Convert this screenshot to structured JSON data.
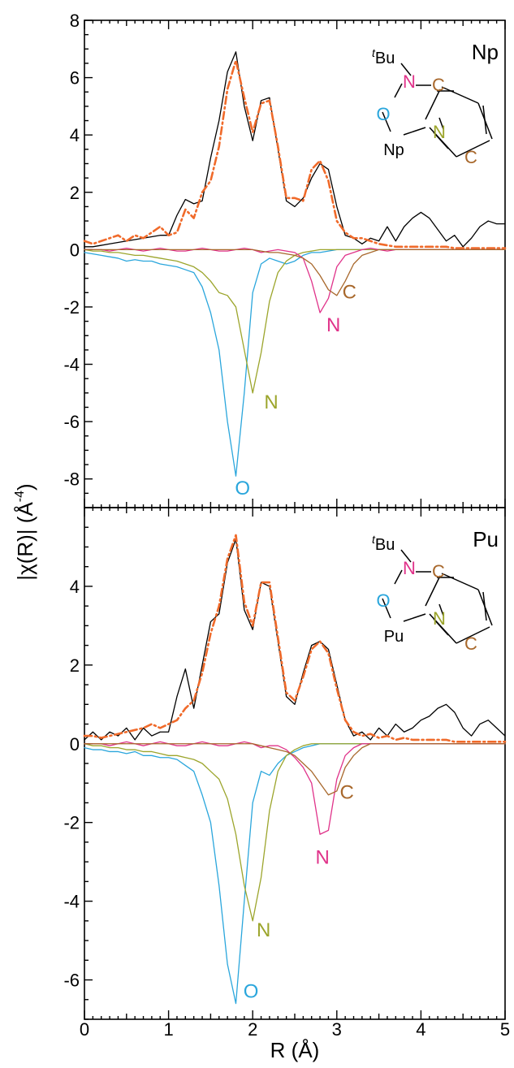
{
  "chart_data": [
    {
      "type": "line",
      "panel_label": "Np",
      "xlim": [
        0,
        5
      ],
      "ylim": [
        -9,
        8
      ],
      "y_ticks": [
        -8,
        -6,
        -4,
        -2,
        0,
        2,
        4,
        6,
        8
      ],
      "x": [
        0,
        0.1,
        0.2,
        0.3,
        0.4,
        0.5,
        0.6,
        0.7,
        0.8,
        0.9,
        1.0,
        1.1,
        1.2,
        1.3,
        1.4,
        1.5,
        1.6,
        1.7,
        1.8,
        1.9,
        2.0,
        2.1,
        2.2,
        2.3,
        2.4,
        2.5,
        2.6,
        2.7,
        2.8,
        2.9,
        3.0,
        3.1,
        3.2,
        3.3,
        3.4,
        3.5,
        3.6,
        3.7,
        3.8,
        3.9,
        4.0,
        4.1,
        4.2,
        4.3,
        4.4,
        4.5,
        4.6,
        4.7,
        4.8,
        4.9,
        5.0
      ],
      "series": [
        {
          "name": "",
          "color": "#000000",
          "dash": "",
          "width": 1.3,
          "values": [
            0.1,
            0.1,
            0.15,
            0.2,
            0.25,
            0.3,
            0.35,
            0.4,
            0.45,
            0.5,
            0.5,
            1.2,
            1.75,
            1.6,
            1.7,
            3.2,
            4.5,
            6.2,
            6.9,
            5.0,
            3.8,
            5.2,
            5.3,
            3.5,
            1.7,
            1.5,
            1.8,
            2.5,
            3.0,
            2.8,
            1.5,
            0.5,
            0.4,
            0.2,
            0.4,
            0.3,
            0.8,
            0.3,
            0.8,
            1.1,
            1.3,
            1.1,
            0.7,
            0.3,
            0.5,
            0.1,
            0.4,
            0.8,
            1.0,
            0.9,
            0.9
          ]
        },
        {
          "name": "",
          "color": "#f06a2a",
          "dash": "9,4,2,4",
          "width": 2.6,
          "values": [
            0.3,
            0.2,
            0.3,
            0.4,
            0.5,
            0.3,
            0.5,
            0.4,
            0.6,
            0.8,
            0.5,
            0.6,
            1.4,
            1.1,
            2.0,
            2.4,
            3.6,
            5.6,
            6.6,
            5.3,
            4.1,
            5.1,
            5.2,
            3.6,
            1.8,
            1.8,
            1.7,
            2.8,
            3.1,
            2.4,
            1.0,
            0.6,
            0.4,
            0.4,
            0.3,
            0.2,
            0.15,
            0.1,
            0.1,
            0.1,
            0.1,
            0.1,
            0.1,
            0.1,
            0.05,
            0.05,
            0.05,
            0.05,
            0.05,
            0.05,
            0.05
          ]
        },
        {
          "name": "",
          "color": "#2aa6dc",
          "dash": "",
          "width": 1.3,
          "values": [
            -0.1,
            -0.15,
            -0.2,
            -0.25,
            -0.3,
            -0.4,
            -0.35,
            -0.4,
            -0.4,
            -0.5,
            -0.55,
            -0.6,
            -0.7,
            -0.8,
            -1.3,
            -2.2,
            -3.5,
            -6.0,
            -7.9,
            -5.0,
            -1.5,
            -0.5,
            -0.3,
            -0.4,
            -0.5,
            -0.4,
            -0.2,
            -0.1,
            -0.1,
            -0.05,
            0,
            0,
            0,
            0,
            0,
            0,
            0,
            0,
            0,
            0,
            0,
            0,
            0,
            0,
            0,
            0,
            0,
            0,
            0,
            0,
            0
          ]
        },
        {
          "name": "",
          "color": "#9ca52c",
          "dash": "",
          "width": 1.3,
          "values": [
            0,
            -0.05,
            -0.05,
            -0.1,
            -0.1,
            -0.15,
            -0.2,
            -0.2,
            -0.25,
            -0.3,
            -0.35,
            -0.4,
            -0.5,
            -0.6,
            -0.8,
            -1.1,
            -1.5,
            -1.6,
            -2.0,
            -3.5,
            -5.0,
            -3.6,
            -1.8,
            -0.8,
            -0.4,
            -0.2,
            -0.1,
            -0.05,
            0,
            0,
            0,
            0,
            0,
            0,
            0,
            0,
            0,
            0,
            0,
            0,
            0,
            0,
            0,
            0,
            0,
            0,
            0,
            0,
            0,
            0,
            0
          ]
        },
        {
          "name": "",
          "color": "#e0338a",
          "dash": "",
          "width": 1.3,
          "values": [
            0,
            0,
            0,
            -0.05,
            0,
            0.05,
            0,
            -0.05,
            0,
            0.05,
            0,
            -0.05,
            -0.05,
            0,
            0.05,
            0,
            -0.05,
            -0.05,
            0,
            0.05,
            0,
            -0.1,
            -0.05,
            0,
            -0.05,
            -0.1,
            -0.3,
            -1.1,
            -2.2,
            -1.7,
            -0.6,
            -0.2,
            -0.1,
            0,
            0.05,
            0,
            -0.05,
            0,
            0,
            0,
            0,
            0,
            0,
            0,
            0,
            0,
            0,
            0,
            0,
            0,
            0
          ]
        },
        {
          "name": "",
          "color": "#a8682c",
          "dash": "",
          "width": 1.3,
          "values": [
            0,
            0,
            0,
            0,
            0,
            0,
            0,
            0,
            0,
            0,
            0,
            0,
            0,
            0,
            0,
            0,
            0,
            0,
            0,
            0,
            0,
            -0.05,
            -0.1,
            -0.1,
            -0.15,
            -0.2,
            -0.3,
            -0.5,
            -0.9,
            -1.4,
            -1.6,
            -1.1,
            -0.5,
            -0.2,
            -0.1,
            0,
            0,
            0,
            0,
            0,
            0,
            0,
            0,
            0,
            0,
            0,
            0,
            0,
            0,
            0,
            0
          ]
        }
      ],
      "peak_labels": [
        {
          "text": "O",
          "color": "#2aa6dc",
          "x": 1.88,
          "y": -8.55
        },
        {
          "text": "N",
          "color": "#9ca52c",
          "x": 2.22,
          "y": -5.55
        },
        {
          "text": "N",
          "color": "#e0338a",
          "x": 2.96,
          "y": -2.85
        },
        {
          "text": "C",
          "color": "#a8682c",
          "x": 3.15,
          "y": -1.7
        }
      ],
      "structure": {
        "tbu": "Bu",
        "tbu_sup": "t",
        "metal": "Np"
      }
    },
    {
      "type": "line",
      "panel_label": "Pu",
      "xlim": [
        0,
        5
      ],
      "ylim": [
        -7,
        6
      ],
      "y_ticks": [
        -6,
        -4,
        -2,
        0,
        2,
        4
      ],
      "x": [
        0,
        0.1,
        0.2,
        0.3,
        0.4,
        0.5,
        0.6,
        0.7,
        0.8,
        0.9,
        1.0,
        1.1,
        1.2,
        1.3,
        1.4,
        1.5,
        1.6,
        1.7,
        1.8,
        1.9,
        2.0,
        2.1,
        2.2,
        2.3,
        2.4,
        2.5,
        2.6,
        2.7,
        2.8,
        2.9,
        3.0,
        3.1,
        3.2,
        3.3,
        3.4,
        3.5,
        3.6,
        3.7,
        3.8,
        3.9,
        4.0,
        4.1,
        4.2,
        4.3,
        4.4,
        4.5,
        4.6,
        4.7,
        4.8,
        4.9,
        5.0
      ],
      "series": [
        {
          "name": "",
          "color": "#000000",
          "dash": "",
          "width": 1.3,
          "values": [
            0.1,
            0.3,
            0.1,
            0.3,
            0.2,
            0.4,
            0.1,
            0.4,
            0.2,
            0.3,
            0.3,
            1.2,
            1.9,
            0.9,
            2.0,
            3.1,
            3.3,
            4.6,
            5.2,
            3.4,
            2.9,
            4.1,
            4.0,
            2.6,
            1.2,
            1.0,
            1.8,
            2.5,
            2.6,
            2.4,
            1.5,
            0.6,
            0.2,
            0.3,
            0.1,
            0.4,
            0.2,
            0.5,
            0.3,
            0.4,
            0.6,
            0.7,
            0.9,
            1.0,
            0.8,
            0.4,
            0.2,
            0.5,
            0.6,
            0.4,
            0.2
          ]
        },
        {
          "name": "",
          "color": "#f06a2a",
          "dash": "9,4,2,4",
          "width": 2.6,
          "values": [
            0.2,
            0.2,
            0.15,
            0.2,
            0.25,
            0.3,
            0.35,
            0.4,
            0.5,
            0.4,
            0.5,
            0.6,
            0.9,
            1.1,
            1.8,
            2.8,
            3.5,
            4.7,
            5.3,
            3.6,
            3.0,
            4.1,
            4.1,
            2.7,
            1.3,
            1.1,
            1.7,
            2.4,
            2.6,
            2.3,
            1.4,
            0.6,
            0.3,
            0.2,
            0.25,
            0.15,
            0.2,
            0.1,
            0.15,
            0.1,
            0.1,
            0.1,
            0.1,
            0.1,
            0.05,
            0.05,
            0.05,
            0.05,
            0.05,
            0.05,
            0.05
          ]
        },
        {
          "name": "",
          "color": "#2aa6dc",
          "dash": "",
          "width": 1.3,
          "values": [
            -0.1,
            -0.15,
            -0.15,
            -0.2,
            -0.2,
            -0.25,
            -0.2,
            -0.3,
            -0.3,
            -0.35,
            -0.35,
            -0.4,
            -0.55,
            -0.7,
            -1.3,
            -2.0,
            -3.6,
            -5.6,
            -6.6,
            -4.0,
            -1.5,
            -0.7,
            -0.8,
            -0.5,
            -0.3,
            -0.2,
            -0.1,
            -0.05,
            0,
            0,
            0,
            0,
            0,
            0,
            0,
            0,
            0,
            0,
            0,
            0,
            0,
            0,
            0,
            0,
            0,
            0,
            0,
            0,
            0,
            0,
            0
          ]
        },
        {
          "name": "",
          "color": "#9ca52c",
          "dash": "",
          "width": 1.3,
          "values": [
            0,
            -0.05,
            -0.05,
            -0.1,
            -0.1,
            -0.15,
            -0.15,
            -0.2,
            -0.2,
            -0.25,
            -0.3,
            -0.3,
            -0.35,
            -0.4,
            -0.5,
            -0.7,
            -0.9,
            -1.4,
            -2.3,
            -3.6,
            -4.5,
            -3.4,
            -1.7,
            -0.7,
            -0.3,
            -0.15,
            -0.05,
            0,
            0,
            0,
            0,
            0,
            0,
            0,
            0,
            0,
            0,
            0,
            0,
            0,
            0,
            0,
            0,
            0,
            0,
            0,
            0,
            0,
            0,
            0,
            0
          ]
        },
        {
          "name": "",
          "color": "#e0338a",
          "dash": "",
          "width": 1.3,
          "values": [
            0,
            0,
            0,
            -0.05,
            0,
            0.05,
            0,
            -0.05,
            0,
            0.05,
            0,
            -0.05,
            -0.05,
            0,
            0.05,
            0,
            -0.05,
            -0.05,
            0,
            0.05,
            0,
            -0.1,
            -0.05,
            -0.05,
            -0.15,
            -0.35,
            -0.6,
            -1.0,
            -2.3,
            -2.2,
            -0.9,
            -0.3,
            -0.1,
            0,
            0,
            0,
            0,
            0,
            0,
            0,
            0,
            0,
            0,
            0,
            0,
            0,
            0,
            0,
            0,
            0,
            0
          ]
        },
        {
          "name": "",
          "color": "#a8682c",
          "dash": "",
          "width": 1.3,
          "values": [
            0,
            0,
            0,
            0,
            0,
            0,
            0,
            0,
            0,
            0,
            0,
            0,
            0,
            0,
            0,
            0,
            0,
            0,
            0,
            0,
            0,
            -0.05,
            -0.1,
            -0.15,
            -0.2,
            -0.3,
            -0.5,
            -0.7,
            -1.0,
            -1.3,
            -1.2,
            -0.6,
            -0.3,
            -0.1,
            0,
            0,
            0,
            0,
            0,
            0,
            0,
            0,
            0,
            0,
            0,
            0,
            0,
            0,
            0,
            0,
            0
          ]
        }
      ],
      "peak_labels": [
        {
          "text": "O",
          "color": "#2aa6dc",
          "x": 1.98,
          "y": -6.45
        },
        {
          "text": "N",
          "color": "#9ca52c",
          "x": 2.13,
          "y": -4.9
        },
        {
          "text": "N",
          "color": "#e0338a",
          "x": 2.83,
          "y": -3.05
        },
        {
          "text": "C",
          "color": "#a8682c",
          "x": 3.12,
          "y": -1.4
        }
      ],
      "structure": {
        "tbu": "Bu",
        "tbu_sup": "t",
        "metal": "Pu"
      }
    }
  ],
  "x_ticks": [
    0,
    1,
    2,
    3,
    4,
    5
  ],
  "xlabel": "R (Å)",
  "ylabel": "|χ(R)| (Å",
  "ylabel_sup": "-4",
  "ylabel_close": ")",
  "structure_atoms": {
    "n1": "N",
    "c1": "C",
    "o": "O",
    "n2": "N",
    "c2": "C"
  },
  "atom_colors": {
    "N": "#e0338a",
    "C": "#a8682c",
    "O": "#2aa6dc",
    "Npyr": "#9ca52c",
    "bond": "#000000"
  }
}
